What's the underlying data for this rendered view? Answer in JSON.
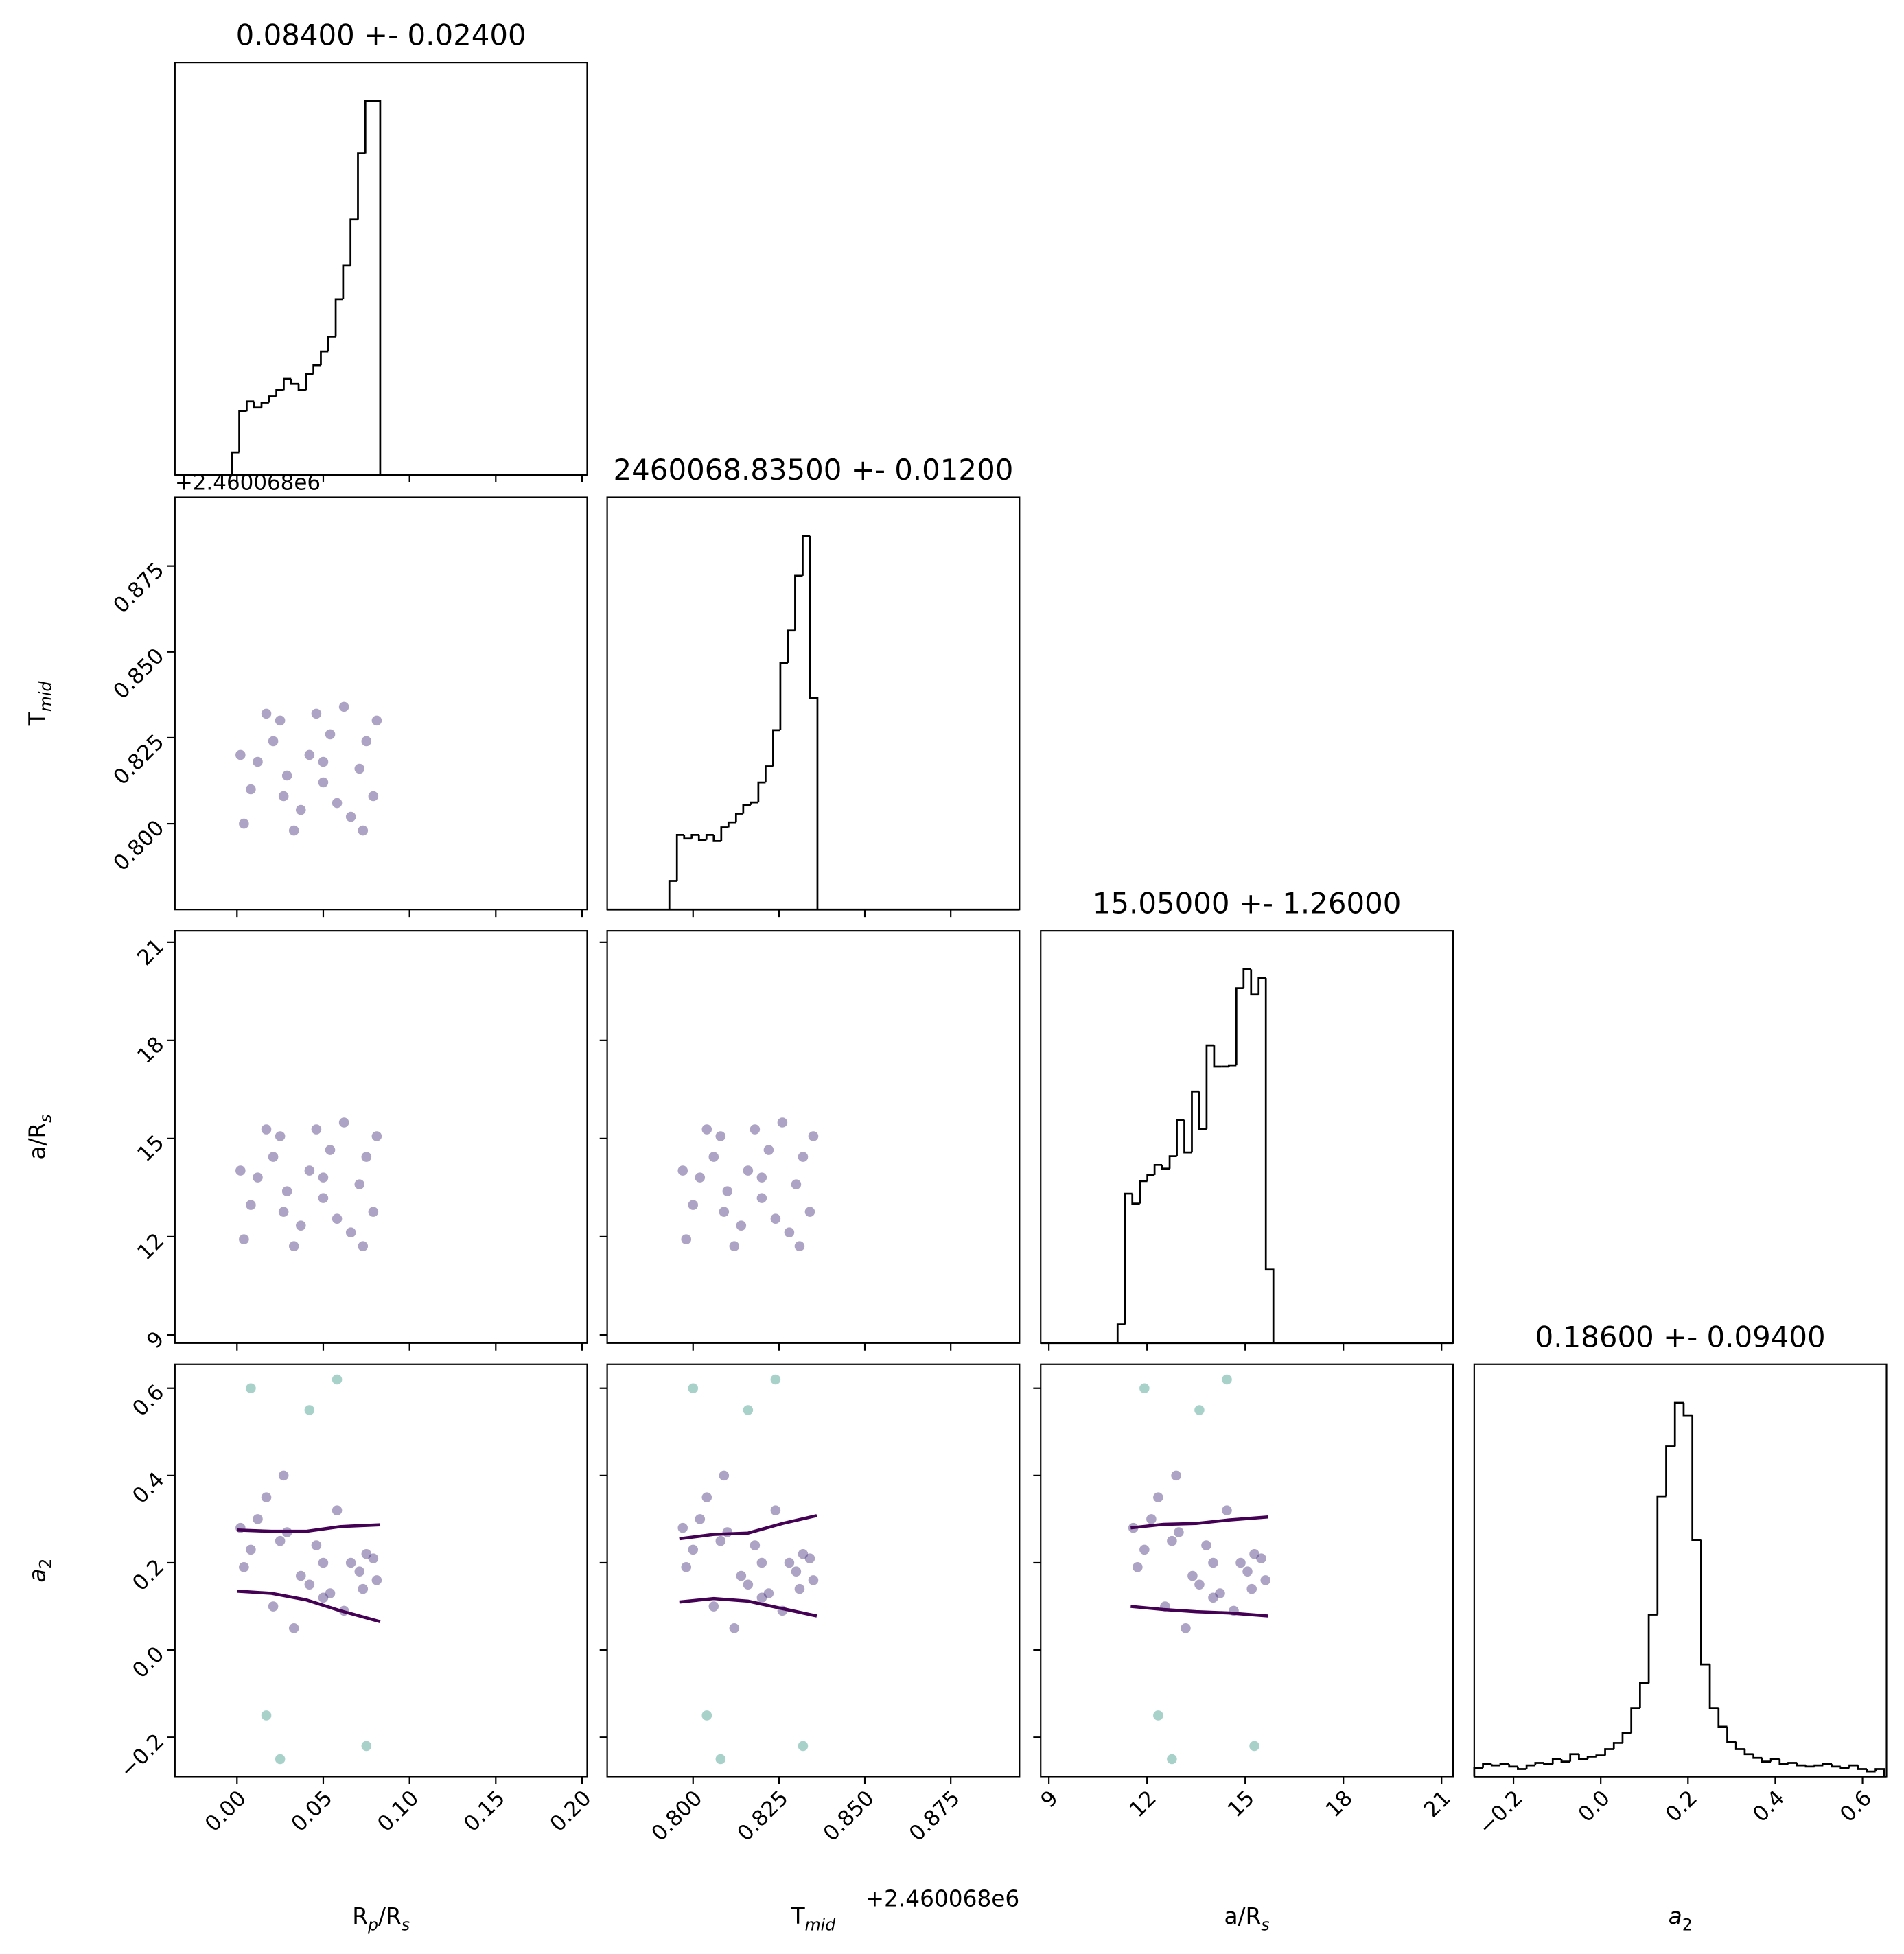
{
  "chart_data": [
    {
      "type": "histogram",
      "title": "0.08400 +- 0.02400",
      "color": "#000000",
      "bins": [
        -0.003,
        0.0013,
        0.0056,
        0.0099,
        0.0142,
        0.0185,
        0.0228,
        0.0271,
        0.0314,
        0.0357,
        0.04,
        0.0443,
        0.0486,
        0.0529,
        0.0572,
        0.0615,
        0.0658,
        0.0701,
        0.0744,
        0.0787,
        0.083
      ],
      "counts": [
        18,
        51,
        59,
        54,
        58,
        63,
        68,
        77,
        73,
        68,
        81,
        88,
        99,
        111,
        141,
        168,
        205,
        258,
        300,
        300
      ],
      "xlim": [
        -0.036,
        0.203
      ],
      "ylim": [
        0,
        331
      ],
      "xticks": [
        0,
        0.05,
        0.1,
        0.15,
        0.2
      ]
    },
    {
      "type": "scatter",
      "yoffset": "+2.460068e6",
      "ylabel": [
        {
          "text": "T"
        },
        {
          "text": "mid",
          "sub": true,
          "italic": true
        }
      ],
      "xlim": [
        -0.036,
        0.203
      ],
      "ylim": [
        0.775,
        0.895
      ],
      "xticks": [
        0,
        0.05,
        0.1,
        0.15,
        0.2
      ],
      "yticks": [
        {
          "value": 0.8,
          "label": "0.800"
        },
        {
          "value": 0.825,
          "label": "0.825"
        },
        {
          "value": 0.85,
          "label": "0.850"
        },
        {
          "value": 0.875,
          "label": "0.875"
        }
      ],
      "series": [
        {
          "color": "#46327e",
          "x": [
            0.004,
            0.025,
            0.05,
            0.075,
            0.012,
            0.037,
            0.062,
            0.079,
            0.017,
            0.042,
            0.066,
            0.029,
            0.054,
            0.008,
            0.071,
            0.033,
            0.058,
            0.021,
            0.046,
            0.081,
            0.002,
            0.05,
            0.073,
            0.027
          ],
          "y": [
            0.8,
            0.83,
            0.812,
            0.824,
            0.818,
            0.804,
            0.834,
            0.808,
            0.832,
            0.82,
            0.802,
            0.814,
            0.826,
            0.81,
            0.816,
            0.798,
            0.806,
            0.824,
            0.832,
            0.83,
            0.82,
            0.818,
            0.798,
            0.808
          ]
        }
      ]
    },
    {
      "type": "histogram",
      "title": "2460068.83500 +- 0.01200",
      "color": "#000000",
      "bins": [
        0.7931,
        0.7953,
        0.7974,
        0.7996,
        0.8017,
        0.8039,
        0.806,
        0.8082,
        0.8103,
        0.8125,
        0.8146,
        0.8168,
        0.819,
        0.8211,
        0.8233,
        0.8254,
        0.8276,
        0.8297,
        0.8319,
        0.834,
        0.8362
      ],
      "counts": [
        23,
        60,
        57,
        60,
        56,
        60,
        55,
        66,
        70,
        77,
        84,
        86,
        102,
        115,
        144,
        198,
        224,
        268,
        300,
        170
      ],
      "xlim": [
        0.775,
        0.895
      ],
      "ylim": [
        0,
        331
      ],
      "xticks": [
        0.8,
        0.825,
        0.85,
        0.875
      ]
    },
    {
      "type": "scatter",
      "ylabel": [
        {
          "text": "a/R"
        },
        {
          "text": "s",
          "sub": true,
          "italic": true
        }
      ],
      "xlim": [
        -0.036,
        0.203
      ],
      "ylim": [
        8.75,
        21.35
      ],
      "xticks": [
        0,
        0.05,
        0.1,
        0.15,
        0.2
      ],
      "yticks": [
        9,
        12,
        15,
        18,
        21
      ],
      "ytick_labels": true,
      "series": [
        {
          "color": "#46327e",
          "x": [
            0.004,
            0.025,
            0.05,
            0.075,
            0.012,
            0.037,
            0.062,
            0.079,
            0.017,
            0.042,
            0.066,
            0.029,
            0.054,
            0.008,
            0.071,
            0.033,
            0.058,
            0.021,
            0.046,
            0.081,
            0.002,
            0.05,
            0.073,
            0.027
          ],
          "y": [
            11.92,
            15.07,
            13.18,
            14.44,
            13.81,
            12.34,
            15.49,
            12.76,
            15.28,
            14.02,
            12.13,
            13.39,
            14.65,
            12.97,
            13.6,
            11.71,
            12.55,
            14.44,
            15.28,
            15.07,
            14.02,
            13.81,
            11.71,
            12.76
          ]
        }
      ]
    },
    {
      "type": "scatter",
      "xlim": [
        0.775,
        0.895
      ],
      "ylim": [
        8.75,
        21.35
      ],
      "xticks": [
        0.8,
        0.825,
        0.85,
        0.875
      ],
      "yticks": [
        9,
        12,
        15,
        18,
        21
      ],
      "series": [
        {
          "color": "#46327e",
          "x": [
            0.798,
            0.808,
            0.82,
            0.832,
            0.802,
            0.814,
            0.826,
            0.834,
            0.804,
            0.816,
            0.828,
            0.81,
            0.822,
            0.8,
            0.83,
            0.812,
            0.824,
            0.806,
            0.818,
            0.835,
            0.797,
            0.82,
            0.831,
            0.809
          ],
          "y": [
            11.92,
            15.07,
            13.18,
            14.44,
            13.81,
            12.34,
            15.49,
            12.76,
            15.28,
            14.02,
            12.13,
            13.39,
            14.65,
            12.97,
            13.6,
            11.71,
            12.55,
            14.44,
            15.28,
            15.07,
            14.02,
            13.81,
            11.71,
            12.76
          ]
        }
      ]
    },
    {
      "type": "histogram",
      "title": "15.05000 +- 1.26000",
      "color": "#000000",
      "bins": [
        11.1,
        11.33,
        11.55,
        11.78,
        12.01,
        12.23,
        12.46,
        12.69,
        12.91,
        13.14,
        13.37,
        13.59,
        13.82,
        14.05,
        14.27,
        14.5,
        14.73,
        14.95,
        15.18,
        15.41,
        15.63,
        15.86
      ],
      "counts": [
        15,
        120,
        112,
        130,
        135,
        143,
        140,
        150,
        179,
        153,
        202,
        172,
        239,
        222,
        222,
        223,
        285,
        300,
        280,
        293,
        59
      ],
      "xlim": [
        8.75,
        21.35
      ],
      "ylim": [
        0,
        331
      ],
      "xticks": [
        9,
        12,
        15,
        18,
        21
      ]
    },
    {
      "type": "scatter",
      "xlabel": [
        {
          "text": "R"
        },
        {
          "text": "p",
          "sub": true,
          "italic": true
        },
        {
          "text": "/R"
        },
        {
          "text": "s",
          "sub": true,
          "italic": true
        }
      ],
      "ylabel": [
        {
          "text": "a",
          "italic": true
        },
        {
          "text": "2",
          "sub": true
        }
      ],
      "xlim": [
        -0.036,
        0.203
      ],
      "ylim": [
        -0.29,
        0.655
      ],
      "xticks": [
        {
          "value": 0,
          "label": "0.00"
        },
        {
          "value": 0.05,
          "label": "0.05"
        },
        {
          "value": 0.1,
          "label": "0.10"
        },
        {
          "value": 0.15,
          "label": "0.15"
        },
        {
          "value": 0.2,
          "label": "0.20"
        }
      ],
      "yticks": [
        {
          "value": -0.2,
          "label": "−0.2"
        },
        {
          "value": 0,
          "label": "0.0"
        },
        {
          "value": 0.2,
          "label": "0.2"
        },
        {
          "value": 0.4,
          "label": "0.4"
        },
        {
          "value": 0.6,
          "label": "0.6"
        }
      ],
      "series": [
        {
          "color": "#46327e",
          "x": [
            0.004,
            0.025,
            0.05,
            0.075,
            0.012,
            0.037,
            0.062,
            0.079,
            0.017,
            0.042,
            0.066,
            0.029,
            0.054,
            0.008,
            0.071,
            0.033,
            0.058,
            0.021,
            0.046,
            0.081,
            0.002,
            0.05,
            0.073,
            0.027
          ],
          "y": [
            0.19,
            0.25,
            0.12,
            0.22,
            0.3,
            0.17,
            0.09,
            0.21,
            0.35,
            0.15,
            0.2,
            0.27,
            0.13,
            0.23,
            0.18,
            0.05,
            0.32,
            0.1,
            0.24,
            0.16,
            0.28,
            0.2,
            0.14,
            0.4
          ]
        },
        {
          "color": "#3e9a8a",
          "x": [
            0.008,
            0.042,
            0.075,
            0.025,
            0.058,
            0.017
          ],
          "y": [
            0.6,
            0.55,
            -0.22,
            -0.25,
            0.62,
            -0.15
          ]
        }
      ],
      "contours": [
        {
          "color": "#440154",
          "x": [
            0,
            0.02,
            0.04,
            0.06,
            0.083
          ],
          "y": [
            0.275,
            0.272,
            0.272,
            0.283,
            0.287
          ]
        },
        {
          "color": "#440154",
          "x": [
            0,
            0.02,
            0.04,
            0.06,
            0.083
          ],
          "y": [
            0.135,
            0.13,
            0.115,
            0.09,
            0.065
          ]
        }
      ]
    },
    {
      "type": "scatter",
      "xlabel": [
        {
          "text": "T"
        },
        {
          "text": "mid",
          "sub": true,
          "italic": true
        }
      ],
      "xoffset": "+2.460068e6",
      "xlim": [
        0.775,
        0.895
      ],
      "ylim": [
        -0.29,
        0.655
      ],
      "xticks": [
        {
          "value": 0.8,
          "label": "0.800"
        },
        {
          "value": 0.825,
          "label": "0.825"
        },
        {
          "value": 0.85,
          "label": "0.850"
        },
        {
          "value": 0.875,
          "label": "0.875"
        }
      ],
      "yticks": [
        -0.2,
        0,
        0.2,
        0.4,
        0.6
      ],
      "series": [
        {
          "color": "#46327e",
          "x": [
            0.798,
            0.808,
            0.82,
            0.832,
            0.802,
            0.814,
            0.826,
            0.834,
            0.804,
            0.816,
            0.828,
            0.81,
            0.822,
            0.8,
            0.83,
            0.812,
            0.824,
            0.806,
            0.818,
            0.835,
            0.797,
            0.82,
            0.831,
            0.809
          ],
          "y": [
            0.19,
            0.25,
            0.12,
            0.22,
            0.3,
            0.17,
            0.09,
            0.21,
            0.35,
            0.15,
            0.2,
            0.27,
            0.13,
            0.23,
            0.18,
            0.05,
            0.32,
            0.1,
            0.24,
            0.16,
            0.28,
            0.2,
            0.14,
            0.4
          ]
        },
        {
          "color": "#3e9a8a",
          "x": [
            0.8,
            0.816,
            0.832,
            0.808,
            0.824,
            0.804
          ],
          "y": [
            0.6,
            0.55,
            -0.22,
            -0.25,
            0.62,
            -0.15
          ]
        }
      ],
      "contours": [
        {
          "color": "#440154",
          "x": [
            0.796,
            0.806,
            0.816,
            0.826,
            0.836
          ],
          "y": [
            0.255,
            0.265,
            0.268,
            0.29,
            0.308
          ]
        },
        {
          "color": "#440154",
          "x": [
            0.796,
            0.806,
            0.816,
            0.826,
            0.836
          ],
          "y": [
            0.11,
            0.118,
            0.112,
            0.095,
            0.078
          ]
        }
      ]
    },
    {
      "type": "scatter",
      "xlabel": [
        {
          "text": "a/R"
        },
        {
          "text": "s",
          "sub": true,
          "italic": true
        }
      ],
      "xlim": [
        8.75,
        21.35
      ],
      "ylim": [
        -0.29,
        0.655
      ],
      "xticks": [
        9,
        12,
        15,
        18,
        21
      ],
      "xtick_labels": true,
      "yticks": [
        -0.2,
        0,
        0.2,
        0.4,
        0.6
      ],
      "series": [
        {
          "color": "#46327e",
          "x": [
            11.71,
            12.76,
            14.02,
            15.28,
            12.13,
            13.39,
            14.65,
            15.49,
            12.34,
            13.6,
            14.86,
            12.97,
            14.23,
            11.92,
            15.07,
            13.18,
            14.44,
            12.55,
            13.81,
            15.62,
            11.58,
            14.02,
            15.2,
            12.89
          ],
          "y": [
            0.19,
            0.25,
            0.12,
            0.22,
            0.3,
            0.17,
            0.09,
            0.21,
            0.35,
            0.15,
            0.2,
            0.27,
            0.13,
            0.23,
            0.18,
            0.05,
            0.32,
            0.1,
            0.24,
            0.16,
            0.28,
            0.2,
            0.14,
            0.4
          ]
        },
        {
          "color": "#3e9a8a",
          "x": [
            11.92,
            13.6,
            15.28,
            12.76,
            14.44,
            12.34
          ],
          "y": [
            0.6,
            0.55,
            -0.22,
            -0.25,
            0.62,
            -0.15
          ]
        }
      ],
      "contours": [
        {
          "color": "#440154",
          "x": [
            11.5,
            12.5,
            13.5,
            14.5,
            15.7
          ],
          "y": [
            0.28,
            0.288,
            0.29,
            0.298,
            0.305
          ]
        },
        {
          "color": "#440154",
          "x": [
            11.5,
            12.5,
            13.5,
            14.5,
            15.7
          ],
          "y": [
            0.1,
            0.093,
            0.088,
            0.085,
            0.078
          ]
        }
      ]
    },
    {
      "type": "histogram",
      "title": "0.18600 +- 0.09400",
      "color": "#000000",
      "xlabel": [
        {
          "text": "a",
          "italic": true
        },
        {
          "text": "2",
          "sub": true
        }
      ],
      "bins": [
        -0.29,
        -0.27,
        -0.25,
        -0.23,
        -0.21,
        -0.19,
        -0.17,
        -0.15,
        -0.13,
        -0.11,
        -0.09,
        -0.07,
        -0.05,
        -0.03,
        -0.01,
        0.01,
        0.03,
        0.05,
        0.07,
        0.09,
        0.11,
        0.13,
        0.15,
        0.17,
        0.19,
        0.21,
        0.23,
        0.25,
        0.27,
        0.29,
        0.31,
        0.33,
        0.35,
        0.37,
        0.39,
        0.41,
        0.43,
        0.45,
        0.47,
        0.49,
        0.51,
        0.53,
        0.55,
        0.57,
        0.59,
        0.61,
        0.63,
        0.65
      ],
      "counts": [
        7,
        10,
        9,
        10,
        8,
        6,
        9,
        11,
        10,
        14,
        12,
        18,
        14,
        16,
        17,
        22,
        27,
        35,
        55,
        75,
        130,
        225,
        265,
        300,
        290,
        190,
        90,
        55,
        40,
        28,
        22,
        18,
        15,
        12,
        14,
        10,
        11,
        9,
        8,
        9,
        10,
        8,
        7,
        9,
        6,
        4,
        6
      ],
      "xlim": [
        -0.29,
        0.655
      ],
      "ylim": [
        0,
        331
      ],
      "xticks": [
        {
          "value": -0.2,
          "label": "−0.2"
        },
        {
          "value": 0,
          "label": "0.0"
        },
        {
          "value": 0.2,
          "label": "0.2"
        },
        {
          "value": 0.4,
          "label": "0.4"
        },
        {
          "value": 0.6,
          "label": "0.6"
        }
      ]
    }
  ]
}
